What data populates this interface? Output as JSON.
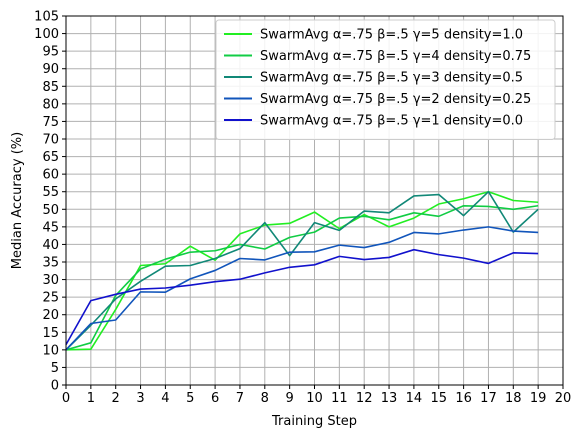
{
  "chart_data": {
    "type": "line",
    "xlabel": "Training Step",
    "ylabel": "Median Accuracy (%)",
    "xlim": [
      0,
      20
    ],
    "ylim": [
      0,
      105
    ],
    "xticks": [
      0,
      1,
      2,
      3,
      4,
      5,
      6,
      7,
      8,
      9,
      10,
      11,
      12,
      13,
      14,
      15,
      16,
      17,
      18,
      19,
      20
    ],
    "yticks": [
      0,
      5,
      10,
      15,
      20,
      25,
      30,
      35,
      40,
      45,
      50,
      55,
      60,
      65,
      70,
      75,
      80,
      85,
      90,
      95,
      100,
      105
    ],
    "grid": true,
    "legend_position": "top-right",
    "x": [
      0,
      1,
      2,
      3,
      4,
      5,
      6,
      7,
      8,
      9,
      10,
      11,
      12,
      13,
      14,
      15,
      16,
      17,
      18,
      19
    ],
    "series": [
      {
        "name": "SwarmAvg α=.75 β=.5 γ=5 density=1.0",
        "color": "#22ee22",
        "values": [
          10.0,
          10.2,
          21.5,
          34.0,
          34.5,
          39.5,
          35.5,
          43.0,
          45.5,
          46.0,
          49.2,
          44.5,
          48.5,
          45.0,
          47.5,
          51.5,
          53.0,
          55.0,
          52.5,
          52.0
        ]
      },
      {
        "name": "SwarmAvg α=.75 β=.5 γ=4 density=0.75",
        "color": "#11cc44",
        "values": [
          10.0,
          12.0,
          25.5,
          33.0,
          35.8,
          37.8,
          38.2,
          40.0,
          38.7,
          42.0,
          43.5,
          47.5,
          48.0,
          47.0,
          49.0,
          48.0,
          51.0,
          50.8,
          50.0,
          51.0
        ]
      },
      {
        "name": "SwarmAvg α=.75 β=.5 γ=3 density=0.5",
        "color": "#118877",
        "values": [
          10.0,
          17.0,
          24.5,
          29.5,
          33.8,
          34.0,
          36.0,
          38.8,
          46.2,
          36.8,
          46.2,
          44.0,
          49.5,
          49.0,
          53.8,
          54.2,
          48.2,
          55.0,
          43.5,
          50.0
        ]
      },
      {
        "name": "SwarmAvg α=.75 β=.5 γ=2 density=0.25",
        "color": "#1155bb",
        "values": [
          10.0,
          17.5,
          18.5,
          26.5,
          26.4,
          30.2,
          32.6,
          36.0,
          35.6,
          37.8,
          37.9,
          39.8,
          39.1,
          40.6,
          43.4,
          43.0,
          44.1,
          45.0,
          43.8,
          43.4
        ]
      },
      {
        "name": "SwarmAvg α=.75 β=.5 γ=1 density=0.0",
        "color": "#1111cc",
        "values": [
          11.5,
          24.0,
          25.8,
          27.3,
          27.6,
          28.4,
          29.4,
          30.1,
          31.9,
          33.5,
          34.2,
          36.6,
          35.7,
          36.3,
          38.5,
          37.1,
          36.1,
          34.6,
          37.6,
          37.4
        ]
      }
    ]
  }
}
